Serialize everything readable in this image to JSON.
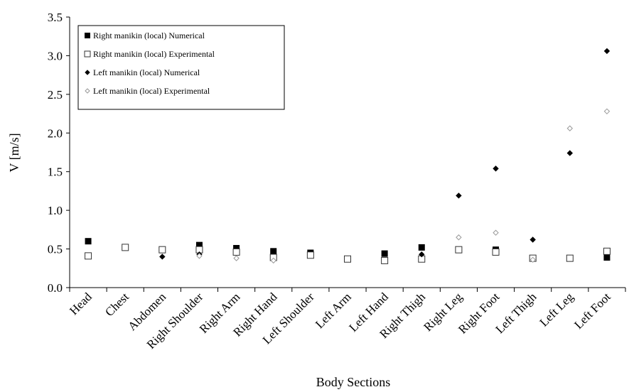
{
  "chart_data": {
    "type": "scatter",
    "xlabel": "Body Sections",
    "ylabel": "V [m/s]",
    "ylim": [
      0,
      3.5
    ],
    "yticks": [
      "0.0",
      "0.5",
      "1.0",
      "1.5",
      "2.0",
      "2.5",
      "3.0",
      "3.5"
    ],
    "grid": false,
    "legend_position": "top-left",
    "categories": [
      "Head",
      "Chest",
      "Abdomen",
      "Right Shoulder",
      "Right Arm",
      "Right Hand",
      "Left Shoulder",
      "Left Arm",
      "Left Hand",
      "Right Thigh",
      "Right Leg",
      "Right Foot",
      "Left Thigh",
      "Left Leg",
      "Left Foot"
    ],
    "series": [
      {
        "name": "Right manikin  (local) Numerical",
        "marker": "filled-square",
        "color": "#000000",
        "values": [
          0.6,
          null,
          null,
          0.55,
          0.51,
          0.47,
          0.45,
          null,
          0.44,
          0.52,
          null,
          0.49,
          null,
          null,
          0.39
        ]
      },
      {
        "name": "Right manikin  (local) Experimental",
        "marker": "open-square",
        "color": "#333333",
        "values": [
          0.41,
          0.52,
          0.49,
          0.49,
          0.46,
          0.39,
          0.42,
          0.37,
          0.35,
          0.37,
          0.49,
          0.46,
          0.38,
          0.38,
          0.47
        ]
      },
      {
        "name": "Left manikin  (local) Numerical",
        "marker": "filled-diamond",
        "color": "#000000",
        "values": [
          null,
          null,
          0.4,
          0.43,
          null,
          null,
          null,
          null,
          null,
          0.43,
          1.19,
          1.54,
          0.62,
          1.74,
          3.06
        ]
      },
      {
        "name": "Left manikin  (local) Experimental",
        "marker": "open-diamond",
        "color": "#999999",
        "values": [
          null,
          null,
          null,
          0.41,
          0.38,
          0.35,
          null,
          null,
          null,
          null,
          0.65,
          0.71,
          0.36,
          2.06,
          2.28
        ]
      }
    ]
  }
}
